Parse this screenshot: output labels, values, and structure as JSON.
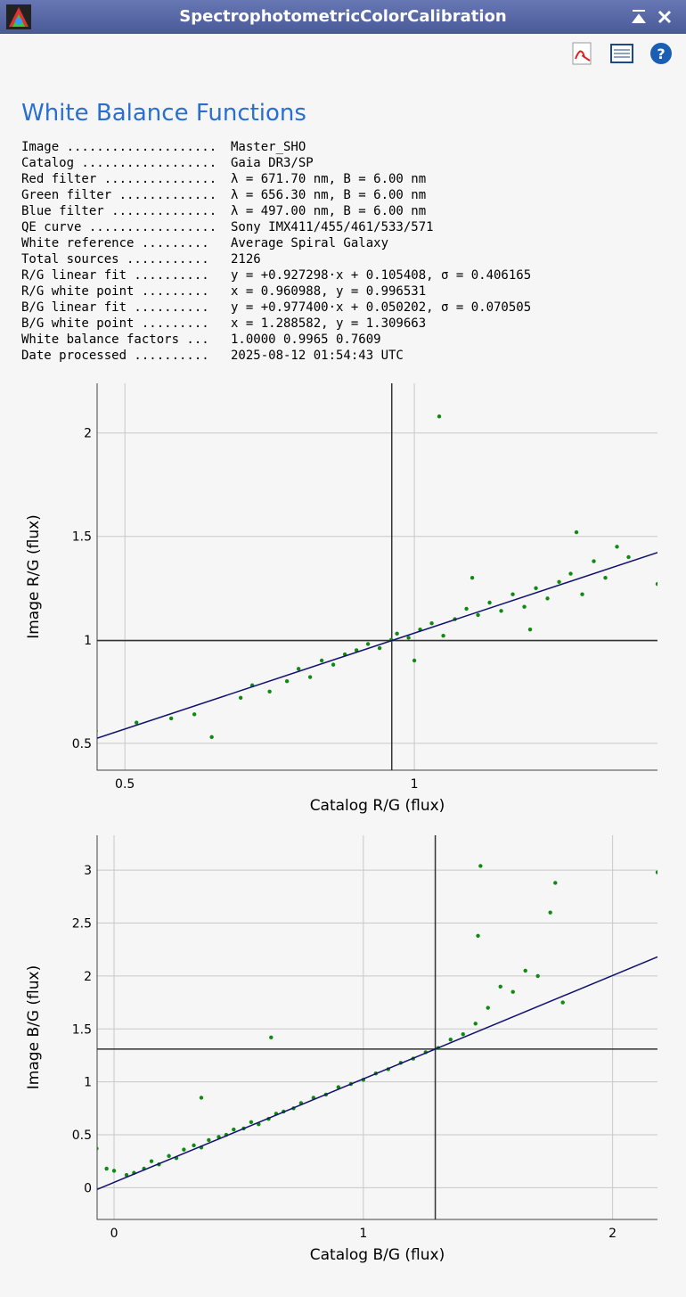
{
  "window": {
    "title": "SpectrophotometricColorCalibration"
  },
  "heading": "White Balance Functions",
  "info": [
    {
      "label": "Image ....................",
      "value": "Master_SHO"
    },
    {
      "label": "Catalog ..................",
      "value": "Gaia DR3/SP"
    },
    {
      "label": "Red filter ...............",
      "value": "λ = 671.70 nm, B = 6.00 nm"
    },
    {
      "label": "Green filter .............",
      "value": "λ = 656.30 nm, B = 6.00 nm"
    },
    {
      "label": "Blue filter ..............",
      "value": "λ = 497.00 nm, B = 6.00 nm"
    },
    {
      "label": "QE curve .................",
      "value": "Sony IMX411/455/461/533/571"
    },
    {
      "label": "White reference .........",
      "value": "Average Spiral Galaxy"
    },
    {
      "label": "Total sources ...........",
      "value": "2126"
    },
    {
      "label": "R/G linear fit ..........",
      "value": "y = +0.927298·x + 0.105408, σ = 0.406165"
    },
    {
      "label": "R/G white point .........",
      "value": "x = 0.960988, y = 0.996531"
    },
    {
      "label": "B/G linear fit ..........",
      "value": "y = +0.977400·x + 0.050202, σ = 0.070505"
    },
    {
      "label": "B/G white point .........",
      "value": "x = 1.288582, y = 1.309663"
    },
    {
      "label": "White balance factors ...",
      "value": "1.0000 0.9965 0.7609"
    },
    {
      "label": "Date processed ..........",
      "value": "2025-08-12 01:54:43 UTC"
    }
  ],
  "chart_data": [
    {
      "type": "scatter",
      "x_label": "Catalog R/G (flux)",
      "y_label": "Image R/G (flux)",
      "xlim": [
        0.452,
        1.42
      ],
      "ylim": [
        0.37,
        2.24
      ],
      "xticks": [
        0.5,
        1
      ],
      "yticks": [
        0.5,
        1,
        1.5,
        2
      ],
      "grid": true,
      "color": "#108a10",
      "fit": {
        "slope": 0.927298,
        "intercept": 0.105408,
        "color": "#101070"
      },
      "white_point": {
        "x": 0.960988,
        "y": 0.996531
      },
      "x": [
        0.45,
        0.52,
        0.58,
        0.62,
        0.65,
        0.7,
        0.72,
        0.75,
        0.78,
        0.8,
        0.82,
        0.84,
        0.86,
        0.88,
        0.9,
        0.92,
        0.94,
        0.96,
        0.97,
        0.99,
        1.01,
        1.03,
        1.05,
        1.07,
        1.09,
        1.11,
        1.13,
        1.15,
        1.17,
        1.19,
        1.21,
        1.23,
        1.25,
        1.27,
        1.29,
        1.31,
        1.33,
        1.35,
        1.37,
        1.28,
        1.42,
        1.043,
        1.1,
        1.2,
        1.0
      ],
      "values": [
        0.56,
        0.6,
        0.62,
        0.64,
        0.53,
        0.72,
        0.78,
        0.75,
        0.8,
        0.86,
        0.82,
        0.9,
        0.88,
        0.93,
        0.95,
        0.98,
        0.96,
        1.0,
        1.03,
        1.01,
        1.05,
        1.08,
        1.02,
        1.1,
        1.15,
        1.12,
        1.18,
        1.14,
        1.22,
        1.16,
        1.25,
        1.2,
        1.28,
        1.32,
        1.22,
        1.38,
        1.3,
        1.45,
        1.4,
        1.52,
        1.27,
        2.08,
        1.3,
        1.05,
        0.9
      ]
    },
    {
      "type": "scatter",
      "x_label": "Catalog B/G (flux)",
      "y_label": "Image B/G (flux)",
      "xlim": [
        -0.068,
        2.18
      ],
      "ylim": [
        -0.3,
        3.33
      ],
      "xticks": [
        0,
        1,
        2
      ],
      "yticks": [
        0,
        0.5,
        1,
        1.5,
        2,
        2.5,
        3
      ],
      "grid": true,
      "color": "#108a10",
      "fit": {
        "slope": 0.9774,
        "intercept": 0.050202,
        "color": "#101070"
      },
      "white_point": {
        "x": 1.288582,
        "y": 1.309663
      },
      "x": [
        -0.07,
        -0.03,
        0,
        0.05,
        0.08,
        0.12,
        0.15,
        0.18,
        0.22,
        0.25,
        0.28,
        0.32,
        0.35,
        0.38,
        0.42,
        0.45,
        0.48,
        0.52,
        0.55,
        0.58,
        0.62,
        0.65,
        0.68,
        0.72,
        0.75,
        0.8,
        0.85,
        0.9,
        0.95,
        1.0,
        1.05,
        1.1,
        1.15,
        1.2,
        1.25,
        1.3,
        1.35,
        1.4,
        1.45,
        1.5,
        1.55,
        1.6,
        1.65,
        1.7,
        1.75,
        1.77,
        1.47,
        2.18,
        0.63,
        0.35,
        1.46,
        1.8
      ],
      "values": [
        0.37,
        0.18,
        0.16,
        0.12,
        0.14,
        0.18,
        0.25,
        0.22,
        0.3,
        0.28,
        0.36,
        0.4,
        0.38,
        0.45,
        0.48,
        0.5,
        0.55,
        0.56,
        0.62,
        0.6,
        0.65,
        0.7,
        0.72,
        0.75,
        0.8,
        0.85,
        0.88,
        0.95,
        0.98,
        1.02,
        1.08,
        1.12,
        1.18,
        1.22,
        1.28,
        1.32,
        1.4,
        1.45,
        1.55,
        1.7,
        1.9,
        1.85,
        2.05,
        2.0,
        2.6,
        2.88,
        3.04,
        2.98,
        1.42,
        0.85,
        2.38,
        1.75
      ]
    }
  ]
}
